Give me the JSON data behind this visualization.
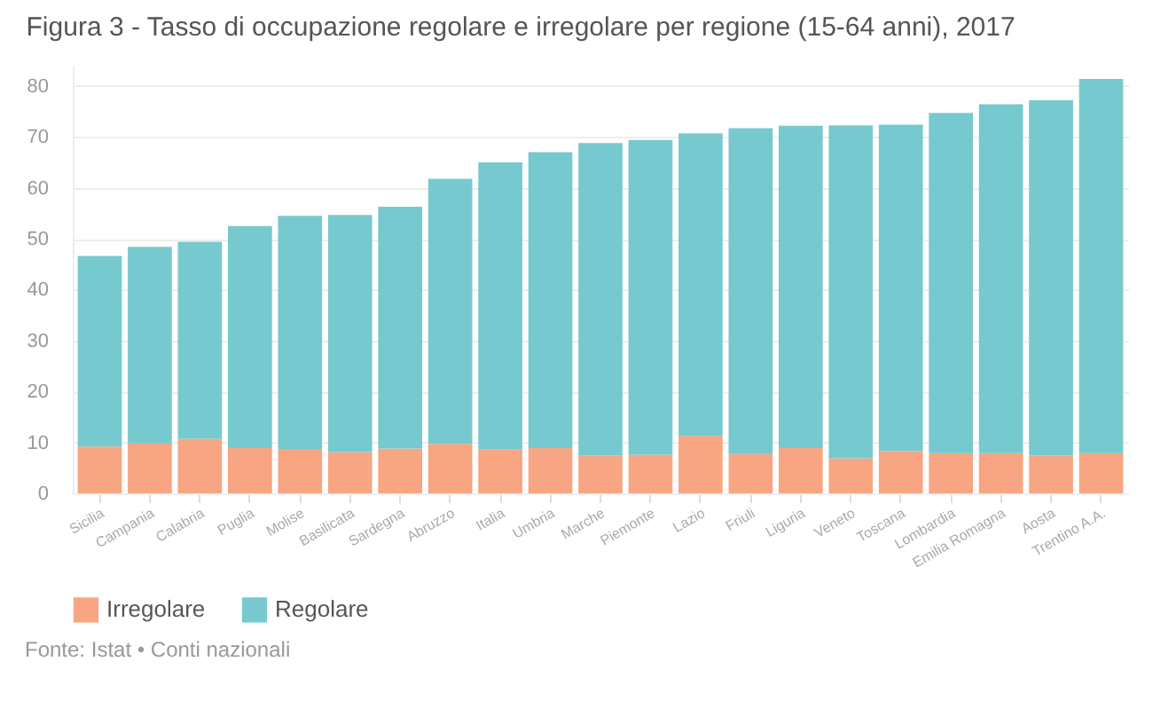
{
  "chart_data": {
    "type": "bar",
    "title": "Figura 3 - Tasso di occupazione regolare e irregolare per regione (15-64 anni), 2017",
    "categories": [
      "Sicilia",
      "Campania",
      "Calabria",
      "Puglia",
      "Molise",
      "Basilicata",
      "Sardegna",
      "Abruzzo",
      "Italia",
      "Umbria",
      "Marche",
      "Piemonte",
      "Lazio",
      "Friuli",
      "Liguria",
      "Veneto",
      "Toscana",
      "Lombardia",
      "Emilia Romagna",
      "Aosta",
      "Trentino A.A."
    ],
    "series": [
      {
        "name": "Irregolare",
        "color": "#f7a582",
        "values": [
          9.2,
          9.8,
          10.7,
          8.9,
          8.7,
          8.1,
          8.8,
          9.7,
          8.6,
          8.9,
          7.4,
          7.6,
          11.3,
          7.7,
          8.9,
          6.9,
          8.3,
          7.9,
          7.9,
          7.4,
          7.9
        ]
      },
      {
        "name": "Regolare",
        "color": "#76c9cf",
        "values": [
          37.4,
          38.6,
          38.7,
          43.6,
          45.8,
          46.6,
          47.5,
          52.1,
          56.4,
          58.1,
          61.4,
          61.8,
          59.4,
          64.0,
          63.3,
          65.4,
          64.1,
          66.8,
          68.5,
          69.8,
          73.5
        ]
      }
    ],
    "stacked": true,
    "ylim": [
      0,
      84
    ],
    "yticks": [
      0,
      10,
      20,
      30,
      40,
      50,
      60,
      70,
      80
    ],
    "grid": "y",
    "legend": "bottom",
    "annotations": [
      "Fonte: Istat • Conti nazionali"
    ]
  }
}
